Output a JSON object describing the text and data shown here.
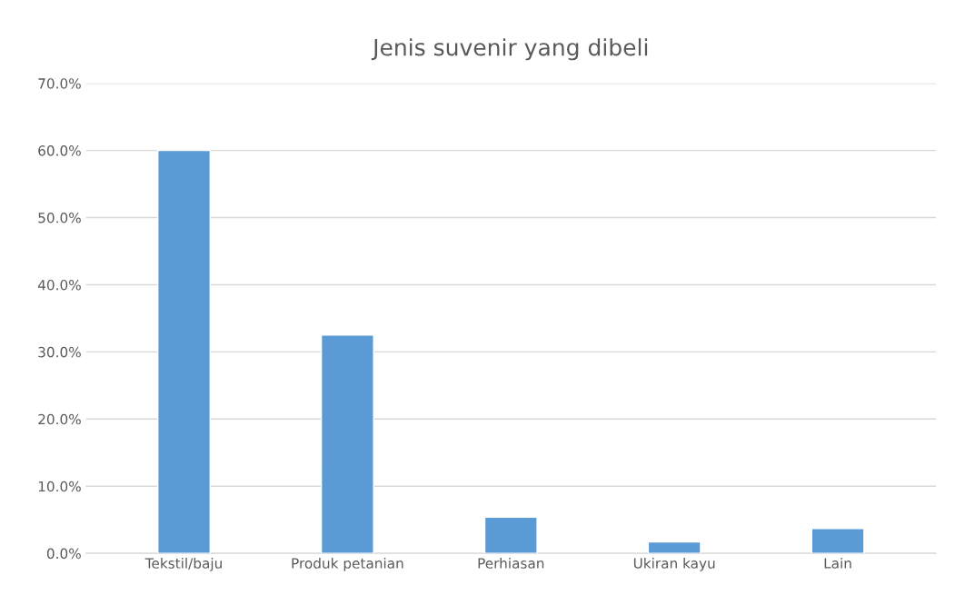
{
  "chart_data": {
    "type": "bar",
    "title": "Jenis suvenir yang dibeli",
    "categories": [
      "Tekstil/baju",
      "Produk petanian",
      "Perhiasan",
      "Ukiran kayu",
      "Lain"
    ],
    "values": [
      60.0,
      32.5,
      5.4,
      1.7,
      3.7
    ],
    "color": "#5b9bd5",
    "ylim": [
      0,
      70
    ],
    "yticks": [
      {
        "value": 0,
        "label": "0.0%"
      },
      {
        "value": 10,
        "label": "10.0%"
      },
      {
        "value": 20,
        "label": "20.0%"
      },
      {
        "value": 30,
        "label": "30.0%"
      },
      {
        "value": 40,
        "label": "40.0%"
      },
      {
        "value": 50,
        "label": "50.0%"
      },
      {
        "value": 60,
        "label": "60.0%"
      },
      {
        "value": 70,
        "label": "70.0%"
      }
    ],
    "grid": "y"
  }
}
